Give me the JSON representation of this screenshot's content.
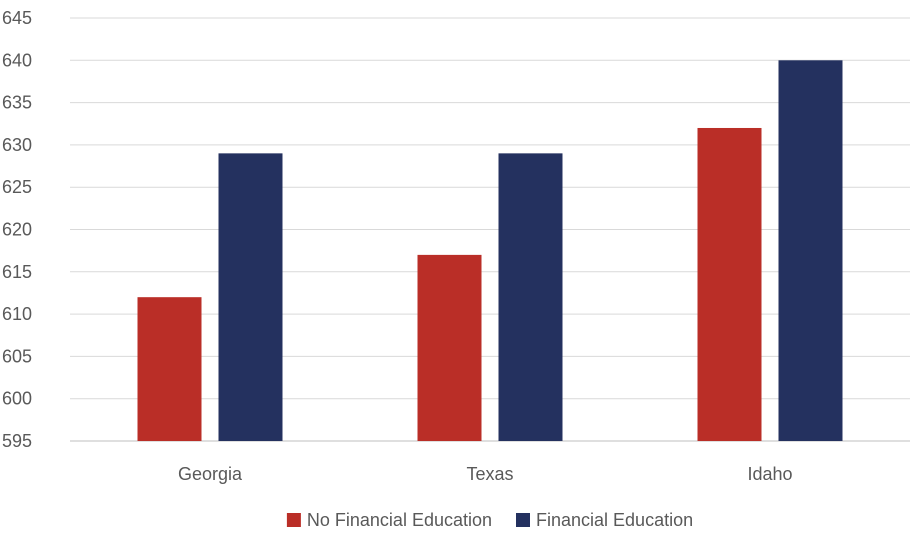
{
  "chart_data": {
    "type": "bar",
    "title": "",
    "xlabel": "",
    "ylabel": "",
    "categories": [
      "Georgia",
      "Texas",
      "Idaho"
    ],
    "series": [
      {
        "name": "No Financial Education",
        "color": "#BA2E27",
        "values": [
          612,
          617,
          632
        ]
      },
      {
        "name": "Financial Education",
        "color": "#24315F",
        "values": [
          629,
          629,
          640
        ]
      }
    ],
    "ylim": [
      595,
      645
    ],
    "ytick_step": 5,
    "grid": true,
    "legend_position": "bottom"
  }
}
